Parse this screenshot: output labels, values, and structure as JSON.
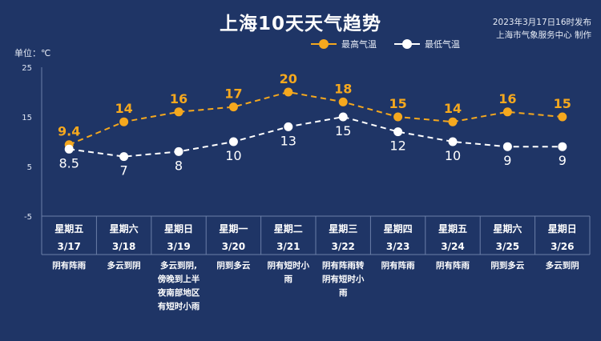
{
  "title": "上海10天天气趋势",
  "issue_time": "2023年3月17日16时发布",
  "issuer": "上海市气象服务中心 制作",
  "unit_label": "单位：℃",
  "colors": {
    "background": "#1f3566",
    "high": "#f5a81e",
    "low": "#ffffff",
    "grid": "#6b7fa8"
  },
  "chart_data": {
    "type": "line",
    "ylim": [
      -5,
      25
    ],
    "yticks": [
      25,
      15,
      5,
      -5
    ],
    "legend_position": "top",
    "series": [
      {
        "name": "最高气温",
        "color": "#f5a81e",
        "values": [
          9.4,
          14,
          16,
          17,
          20,
          18,
          15,
          14,
          16,
          15
        ],
        "labels": [
          "9.4",
          "14",
          "16",
          "17",
          "20",
          "18",
          "15",
          "14",
          "16",
          "15"
        ]
      },
      {
        "name": "最低气温",
        "color": "#ffffff",
        "values": [
          8.5,
          7,
          8,
          10,
          13,
          15,
          12,
          10,
          9,
          9
        ],
        "labels": [
          "8.5",
          "7",
          "8",
          "10",
          "13",
          "15",
          "12",
          "10",
          "9",
          "9"
        ]
      }
    ],
    "days": [
      {
        "weekday": "星期五",
        "date": "3/17",
        "weather": [
          "阴有阵雨"
        ]
      },
      {
        "weekday": "星期六",
        "date": "3/18",
        "weather": [
          "多云到阴"
        ]
      },
      {
        "weekday": "星期日",
        "date": "3/19",
        "weather": [
          "多云到阴,",
          "傍晚到上半",
          "夜南部地区",
          "有短时小雨"
        ]
      },
      {
        "weekday": "星期一",
        "date": "3/20",
        "weather": [
          "阴到多云"
        ]
      },
      {
        "weekday": "星期二",
        "date": "3/21",
        "weather": [
          "阴有短时小",
          "雨"
        ]
      },
      {
        "weekday": "星期三",
        "date": "3/22",
        "weather": [
          "阴有阵雨转",
          "阴有短时小",
          "雨"
        ]
      },
      {
        "weekday": "星期四",
        "date": "3/23",
        "weather": [
          "阴有阵雨"
        ]
      },
      {
        "weekday": "星期五",
        "date": "3/24",
        "weather": [
          "阴有阵雨"
        ]
      },
      {
        "weekday": "星期六",
        "date": "3/25",
        "weather": [
          "阴到多云"
        ]
      },
      {
        "weekday": "星期日",
        "date": "3/26",
        "weather": [
          "多云到阴"
        ]
      }
    ]
  }
}
